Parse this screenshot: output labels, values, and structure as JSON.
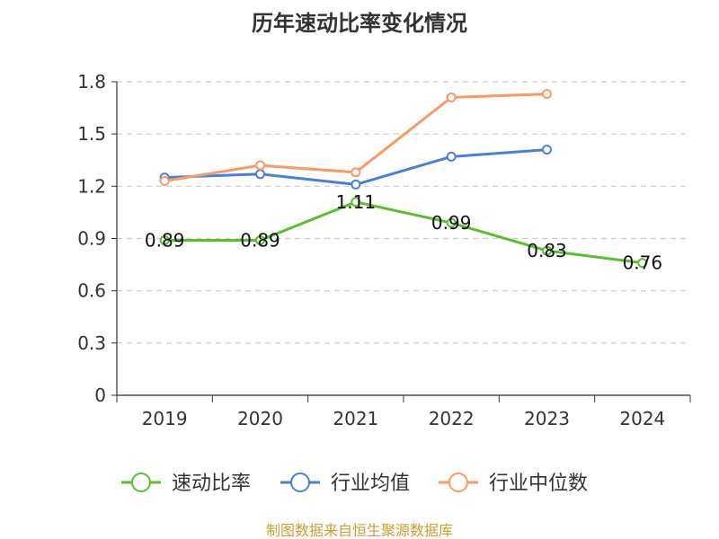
{
  "chart_data": {
    "type": "line",
    "title": "历年速动比率变化情况",
    "categories": [
      "2019",
      "2020",
      "2021",
      "2022",
      "2023",
      "2024"
    ],
    "ylim": [
      0,
      1.8
    ],
    "yticks": [
      "0",
      "0.3",
      "0.6",
      "0.9",
      "1.2",
      "1.5",
      "1.8"
    ],
    "grid": true,
    "legend_position": "bottom",
    "series": [
      {
        "name": "速动比率",
        "color": "#5cbd2f",
        "values": [
          0.89,
          0.89,
          1.11,
          0.99,
          0.83,
          0.76
        ],
        "labels": [
          "0.89",
          "0.89",
          "1.11",
          "0.99",
          "0.83",
          "0.76"
        ]
      },
      {
        "name": "行业均值",
        "color": "#4a7fd9",
        "values": [
          1.25,
          1.27,
          1.21,
          1.37,
          1.41,
          null
        ],
        "labels": []
      },
      {
        "name": "行业中位数",
        "color": "#f79a65",
        "values": [
          1.23,
          1.32,
          1.28,
          1.71,
          1.73,
          null
        ],
        "labels": []
      }
    ],
    "source": "制图数据来自恒生聚源数据库",
    "source_color": "#c8a032"
  }
}
